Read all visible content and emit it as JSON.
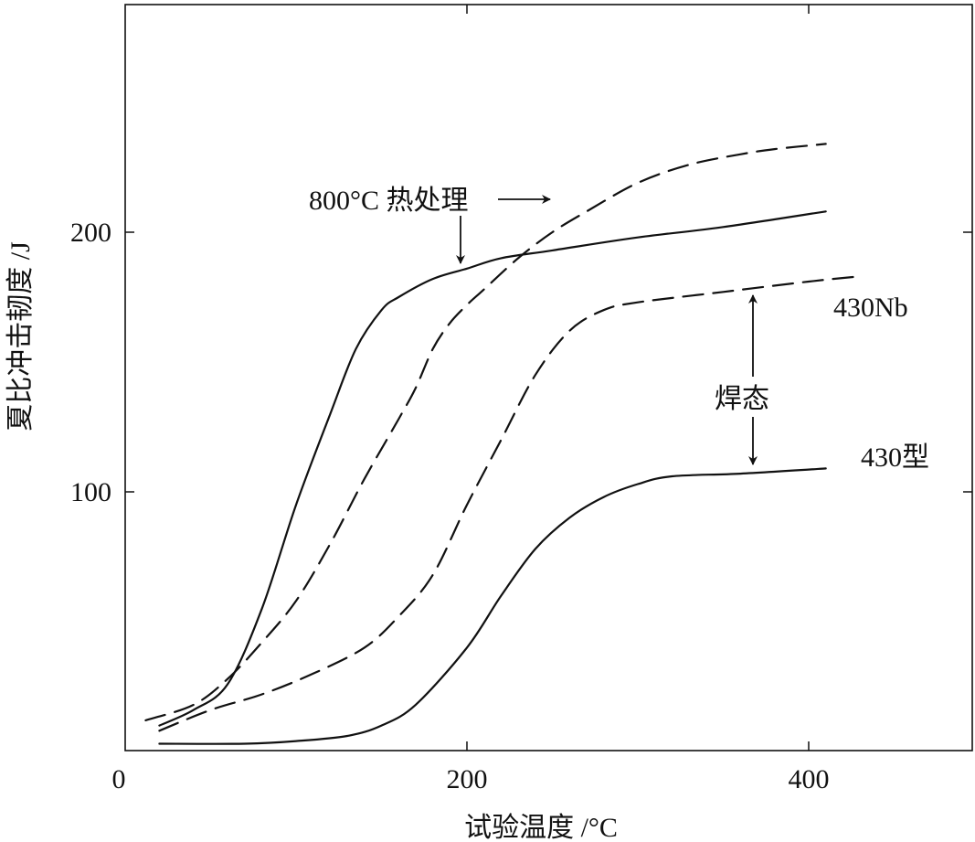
{
  "chart_data": {
    "type": "line",
    "xlabel": "试验温度 /°C",
    "ylabel": "夏比冲击韧度 /J",
    "xlim": [
      -5,
      500
    ],
    "ylim": [
      0,
      300
    ],
    "x_ticks": [
      0,
      200,
      400
    ],
    "y_ticks": [
      100,
      200
    ],
    "grid": false,
    "series": [
      {
        "style": "dashed",
        "values": [
          [
            12,
            12
          ],
          [
            40,
            18
          ],
          [
            60,
            28
          ],
          [
            80,
            42
          ],
          [
            100,
            58
          ],
          [
            120,
            80
          ],
          [
            140,
            105
          ],
          [
            160,
            128
          ],
          [
            170,
            140
          ],
          [
            180,
            155
          ],
          [
            190,
            165
          ],
          [
            200,
            172
          ],
          [
            210,
            178
          ],
          [
            230,
            190
          ],
          [
            250,
            200
          ],
          [
            270,
            208
          ],
          [
            300,
            219
          ],
          [
            330,
            226
          ],
          [
            360,
            230
          ],
          [
            380,
            232
          ],
          [
            410,
            234
          ]
        ]
      },
      {
        "style": "solid",
        "values": [
          [
            20,
            10
          ],
          [
            40,
            16
          ],
          [
            60,
            26
          ],
          [
            80,
            55
          ],
          [
            100,
            95
          ],
          [
            120,
            130
          ],
          [
            135,
            155
          ],
          [
            150,
            170
          ],
          [
            160,
            175
          ],
          [
            180,
            182
          ],
          [
            200,
            186
          ],
          [
            220,
            190
          ],
          [
            250,
            193
          ],
          [
            300,
            198
          ],
          [
            350,
            202
          ],
          [
            410,
            208
          ]
        ]
      },
      {
        "style": "dashed",
        "values": [
          [
            20,
            8
          ],
          [
            50,
            16
          ],
          [
            80,
            22
          ],
          [
            110,
            30
          ],
          [
            140,
            40
          ],
          [
            160,
            52
          ],
          [
            180,
            68
          ],
          [
            200,
            95
          ],
          [
            220,
            120
          ],
          [
            240,
            145
          ],
          [
            260,
            162
          ],
          [
            280,
            170
          ],
          [
            300,
            173
          ],
          [
            350,
            177
          ],
          [
            400,
            181
          ],
          [
            430,
            183
          ]
        ]
      },
      {
        "style": "solid",
        "values": [
          [
            20,
            3
          ],
          [
            70,
            3
          ],
          [
            100,
            4
          ],
          [
            130,
            6
          ],
          [
            150,
            10
          ],
          [
            170,
            18
          ],
          [
            200,
            40
          ],
          [
            220,
            60
          ],
          [
            240,
            78
          ],
          [
            260,
            90
          ],
          [
            280,
            98
          ],
          [
            300,
            103
          ],
          [
            320,
            106
          ],
          [
            360,
            107
          ],
          [
            410,
            109
          ]
        ]
      }
    ],
    "annotations": [
      {
        "text": "800°C 热处理"
      },
      {
        "text": "430Nb"
      },
      {
        "text": "焊态"
      },
      {
        "text": "430型"
      }
    ]
  }
}
